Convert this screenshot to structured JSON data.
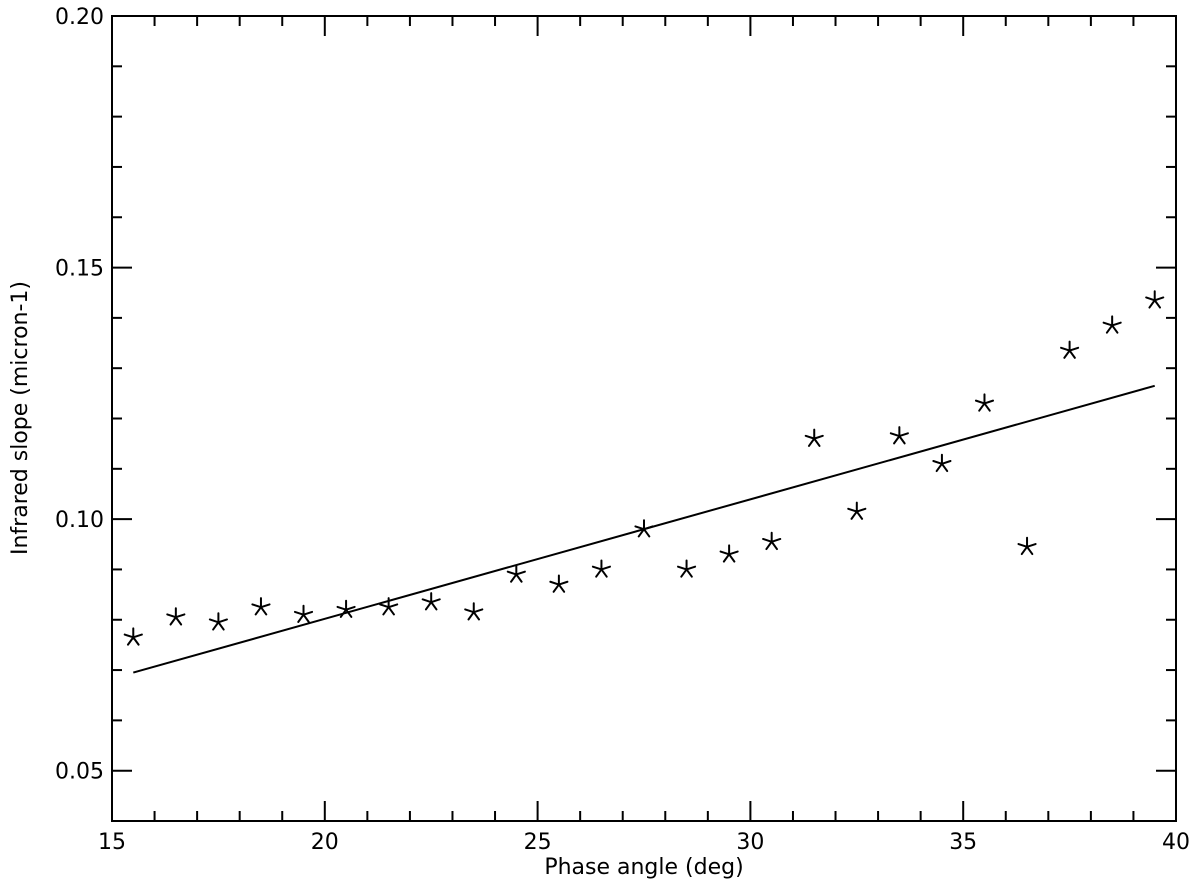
{
  "chart_data": {
    "type": "scatter",
    "title": "",
    "xlabel": "Phase angle (deg)",
    "ylabel": "Infrared slope (micron-1)",
    "xlim": [
      15,
      40
    ],
    "ylim": [
      0.04,
      0.2
    ],
    "x_ticks": [
      "15",
      "20",
      "25",
      "30",
      "35",
      "40"
    ],
    "y_ticks": [
      "0.05",
      "0.10",
      "0.15",
      "0.20"
    ],
    "grid": false,
    "marker": "star",
    "color": "#000000",
    "series": [
      {
        "x": [
          15.5,
          16.5,
          17.5,
          18.5,
          19.5,
          20.5,
          21.5,
          22.5,
          23.5,
          24.5,
          25.5,
          26.5,
          27.5,
          28.5,
          29.5,
          30.5,
          31.5,
          32.5,
          33.5,
          34.5,
          35.5,
          36.5,
          37.5,
          38.5,
          39.5
        ],
        "y": [
          0.0765,
          0.0805,
          0.0795,
          0.0825,
          0.081,
          0.082,
          0.0825,
          0.0835,
          0.0815,
          0.089,
          0.087,
          0.09,
          0.098,
          0.09,
          0.093,
          0.0955,
          0.116,
          0.1015,
          0.1165,
          0.111,
          0.123,
          0.0945,
          0.1335,
          0.1385,
          0.1435
        ]
      }
    ],
    "fit_line": {
      "x": [
        15.5,
        39.5
      ],
      "y": [
        0.0695,
        0.1265
      ]
    }
  }
}
